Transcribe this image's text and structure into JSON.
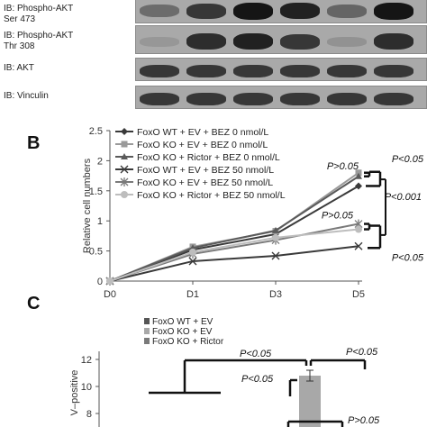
{
  "panelA": {
    "blots": [
      {
        "label_line1": "IB: Phospho-AKT",
        "label_line2": "Ser 473",
        "intensities": [
          0.5,
          0.8,
          0.95,
          0.9,
          0.55,
          0.95
        ]
      },
      {
        "label_line1": "IB: Phospho-AKT",
        "label_line2": "Thr 308",
        "intensities": [
          0.15,
          0.85,
          0.9,
          0.8,
          0.2,
          0.85
        ]
      },
      {
        "label_line1": "IB: AKT",
        "label_line2": "",
        "intensities": [
          0.8,
          0.8,
          0.8,
          0.8,
          0.8,
          0.8
        ]
      },
      {
        "label_line1": "IB: Vinculin",
        "label_line2": "",
        "intensities": [
          0.8,
          0.8,
          0.8,
          0.8,
          0.8,
          0.8
        ]
      }
    ]
  },
  "panelB": {
    "letter": "B",
    "chart_data": {
      "type": "line",
      "categories": [
        "D0",
        "D1",
        "D3",
        "D5"
      ],
      "ylabel": "Relative cell numbers",
      "ylim": [
        0,
        2.5
      ],
      "yticks": [
        "0",
        "0.5",
        "1",
        "1.5",
        "2",
        "2.5"
      ],
      "series": [
        {
          "name": "FoxO WT + EV + BEZ 0 nmol/L",
          "color": "#3a3a3a",
          "marker": "diamond",
          "values": [
            0,
            0.52,
            0.78,
            1.58
          ]
        },
        {
          "name": "FoxO KO + EV + BEZ 0 nmol/L",
          "color": "#9a9a9a",
          "marker": "square",
          "values": [
            0,
            0.57,
            0.83,
            1.8
          ]
        },
        {
          "name": "FoxO KO + Rictor + BEZ 0 nmol/L",
          "color": "#5a5a5a",
          "marker": "triangle",
          "values": [
            0,
            0.55,
            0.84,
            1.74
          ]
        },
        {
          "name": "FoxO WT + EV + BEZ 50 nmol/L",
          "color": "#3a3a3a",
          "marker": "x",
          "values": [
            0,
            0.33,
            0.42,
            0.58
          ]
        },
        {
          "name": "FoxO KO + EV + BEZ 50 nmol/L",
          "color": "#7a7a7a",
          "marker": "star",
          "values": [
            0,
            0.45,
            0.68,
            0.95
          ]
        },
        {
          "name": "FoxO KO + Rictor + BEZ 50 nmol/L",
          "color": "#bdbdbd",
          "marker": "circle",
          "values": [
            0,
            0.48,
            0.72,
            0.86
          ]
        }
      ],
      "annotations": [
        "P>0.05",
        "P<0.05",
        "P<0.001",
        "P>0.05",
        "P<0.05"
      ]
    }
  },
  "panelC": {
    "letter": "C",
    "chart_data": {
      "type": "bar",
      "series": [
        {
          "name": "FoxO WT + EV",
          "color": "#555555"
        },
        {
          "name": "FoxO KO + EV",
          "color": "#a8a8a8"
        },
        {
          "name": "FoxO KO + Rictor",
          "color": "#7a7a7a"
        }
      ],
      "ylabel": "V–positive",
      "yticks": [
        "12",
        "10",
        "8"
      ],
      "ylim": [
        7,
        13
      ],
      "visible_bar": {
        "series": "FoxO KO + EV",
        "value": 10.8,
        "error": 0.4
      },
      "annotations": [
        "P<0.05",
        "P<0.05",
        "P<0.05",
        "P>0.05"
      ]
    }
  }
}
